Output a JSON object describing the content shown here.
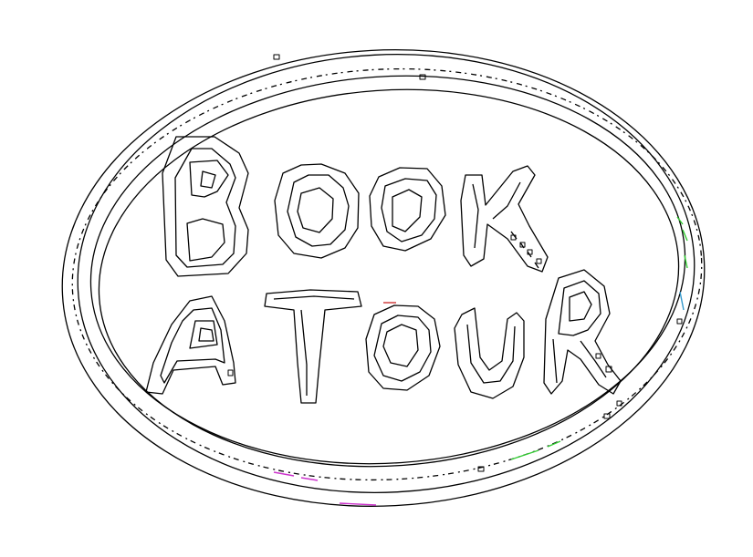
{
  "logo": {
    "line1": "BOOK",
    "line2": "A TOUR",
    "stroke_color": "#000000",
    "background_color": "#ffffff",
    "speckle_colors": [
      "#33cc33",
      "#cc33cc",
      "#cc3333",
      "#3399cc"
    ]
  }
}
